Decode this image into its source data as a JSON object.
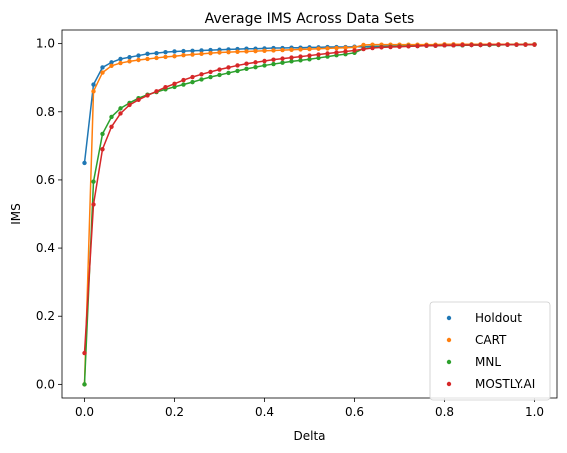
{
  "chart_data": {
    "type": "line",
    "title": "Average IMS Across Data Sets",
    "xlabel": "Delta",
    "ylabel": "IMS",
    "xlim": [
      -0.05,
      1.05
    ],
    "ylim": [
      -0.04,
      1.04
    ],
    "xticks": [
      0.0,
      0.2,
      0.4,
      0.6,
      0.8,
      1.0
    ],
    "xtick_labels": [
      "0.0",
      "0.2",
      "0.4",
      "0.6",
      "0.8",
      "1.0"
    ],
    "yticks": [
      0.0,
      0.2,
      0.4,
      0.6,
      0.8,
      1.0
    ],
    "ytick_labels": [
      "0.0",
      "0.2",
      "0.4",
      "0.6",
      "0.8",
      "1.0"
    ],
    "grid": false,
    "legend_position": "lower-right",
    "markers": "points with connecting lines",
    "series": [
      {
        "name": "Holdout",
        "color": "#1f77b4",
        "x": [
          0.0,
          0.02,
          0.04,
          0.06,
          0.08,
          0.1,
          0.12,
          0.14,
          0.16,
          0.18,
          0.2,
          0.22,
          0.24,
          0.26,
          0.28,
          0.3,
          0.32,
          0.34,
          0.36,
          0.38,
          0.4,
          0.42,
          0.44,
          0.46,
          0.48,
          0.5,
          0.52,
          0.54,
          0.56,
          0.58,
          0.6,
          0.62,
          0.64,
          0.66,
          0.68,
          0.7,
          0.72,
          0.74,
          0.76,
          0.78,
          0.8,
          0.82,
          0.84,
          0.86,
          0.88,
          0.9,
          0.92,
          0.94,
          0.96,
          0.98,
          1.0
        ],
        "values": [
          0.65,
          0.88,
          0.93,
          0.945,
          0.955,
          0.96,
          0.965,
          0.97,
          0.972,
          0.975,
          0.977,
          0.978,
          0.979,
          0.98,
          0.981,
          0.982,
          0.983,
          0.984,
          0.985,
          0.985,
          0.986,
          0.987,
          0.987,
          0.988,
          0.988,
          0.989,
          0.989,
          0.99,
          0.99,
          0.99,
          0.991,
          0.991,
          0.992,
          0.992,
          0.993,
          0.993,
          0.993,
          0.994,
          0.994,
          0.994,
          0.995,
          0.995,
          0.995,
          0.996,
          0.996,
          0.996,
          0.997,
          0.997,
          0.997,
          0.998,
          0.998
        ]
      },
      {
        "name": "CART",
        "color": "#ff7f0e",
        "x": [
          0.0,
          0.02,
          0.04,
          0.06,
          0.08,
          0.1,
          0.12,
          0.14,
          0.16,
          0.18,
          0.2,
          0.22,
          0.24,
          0.26,
          0.28,
          0.3,
          0.32,
          0.34,
          0.36,
          0.38,
          0.4,
          0.42,
          0.44,
          0.46,
          0.48,
          0.5,
          0.52,
          0.54,
          0.56,
          0.58,
          0.6,
          0.62,
          0.64,
          0.66,
          0.68,
          0.7,
          0.72,
          0.74,
          0.76,
          0.78,
          0.8,
          0.82,
          0.84,
          0.86,
          0.88,
          0.9,
          0.92,
          0.94,
          0.96,
          0.98,
          1.0
        ],
        "values": [
          0.0,
          0.86,
          0.915,
          0.935,
          0.943,
          0.948,
          0.952,
          0.955,
          0.958,
          0.961,
          0.963,
          0.966,
          0.968,
          0.97,
          0.972,
          0.974,
          0.975,
          0.976,
          0.977,
          0.978,
          0.979,
          0.98,
          0.981,
          0.982,
          0.983,
          0.984,
          0.985,
          0.986,
          0.987,
          0.988,
          0.989,
          0.996,
          0.997,
          0.997,
          0.997,
          0.997,
          0.997,
          0.997,
          0.997,
          0.997,
          0.998,
          0.998,
          0.998,
          0.998,
          0.998,
          0.998,
          0.998,
          0.998,
          0.998,
          0.998,
          0.998
        ]
      },
      {
        "name": "MNL",
        "color": "#2ca02c",
        "x": [
          0.0,
          0.02,
          0.04,
          0.06,
          0.08,
          0.1,
          0.12,
          0.14,
          0.16,
          0.18,
          0.2,
          0.22,
          0.24,
          0.26,
          0.28,
          0.3,
          0.32,
          0.34,
          0.36,
          0.38,
          0.4,
          0.42,
          0.44,
          0.46,
          0.48,
          0.5,
          0.52,
          0.54,
          0.56,
          0.58,
          0.6,
          0.62,
          0.64,
          0.66,
          0.68,
          0.7,
          0.72,
          0.74,
          0.76,
          0.78,
          0.8,
          0.82,
          0.84,
          0.86,
          0.88,
          0.9,
          0.92,
          0.94,
          0.96,
          0.98,
          1.0
        ],
        "values": [
          0.0,
          0.595,
          0.735,
          0.785,
          0.81,
          0.826,
          0.84,
          0.85,
          0.858,
          0.866,
          0.873,
          0.88,
          0.887,
          0.895,
          0.902,
          0.908,
          0.914,
          0.92,
          0.926,
          0.931,
          0.936,
          0.94,
          0.944,
          0.948,
          0.951,
          0.954,
          0.958,
          0.962,
          0.966,
          0.969,
          0.973,
          0.985,
          0.988,
          0.99,
          0.991,
          0.992,
          0.993,
          0.993,
          0.994,
          0.994,
          0.995,
          0.995,
          0.995,
          0.996,
          0.996,
          0.996,
          0.996,
          0.997,
          0.997,
          0.997,
          0.997
        ]
      },
      {
        "name": "MOSTLY.AI",
        "color": "#d62728",
        "x": [
          0.0,
          0.02,
          0.04,
          0.06,
          0.08,
          0.1,
          0.12,
          0.14,
          0.16,
          0.18,
          0.2,
          0.22,
          0.24,
          0.26,
          0.28,
          0.3,
          0.32,
          0.34,
          0.36,
          0.38,
          0.4,
          0.42,
          0.44,
          0.46,
          0.48,
          0.5,
          0.52,
          0.54,
          0.56,
          0.58,
          0.6,
          0.62,
          0.64,
          0.66,
          0.68,
          0.7,
          0.72,
          0.74,
          0.76,
          0.78,
          0.8,
          0.82,
          0.84,
          0.86,
          0.88,
          0.9,
          0.92,
          0.94,
          0.96,
          0.98,
          1.0
        ],
        "values": [
          0.092,
          0.528,
          0.69,
          0.756,
          0.795,
          0.82,
          0.835,
          0.848,
          0.86,
          0.872,
          0.882,
          0.893,
          0.902,
          0.91,
          0.917,
          0.924,
          0.93,
          0.936,
          0.941,
          0.945,
          0.949,
          0.953,
          0.956,
          0.959,
          0.962,
          0.965,
          0.968,
          0.971,
          0.974,
          0.977,
          0.98,
          0.984,
          0.987,
          0.989,
          0.99,
          0.991,
          0.992,
          0.993,
          0.994,
          0.994,
          0.995,
          0.995,
          0.996,
          0.996,
          0.996,
          0.997,
          0.997,
          0.997,
          0.997,
          0.997,
          0.997
        ]
      }
    ]
  }
}
